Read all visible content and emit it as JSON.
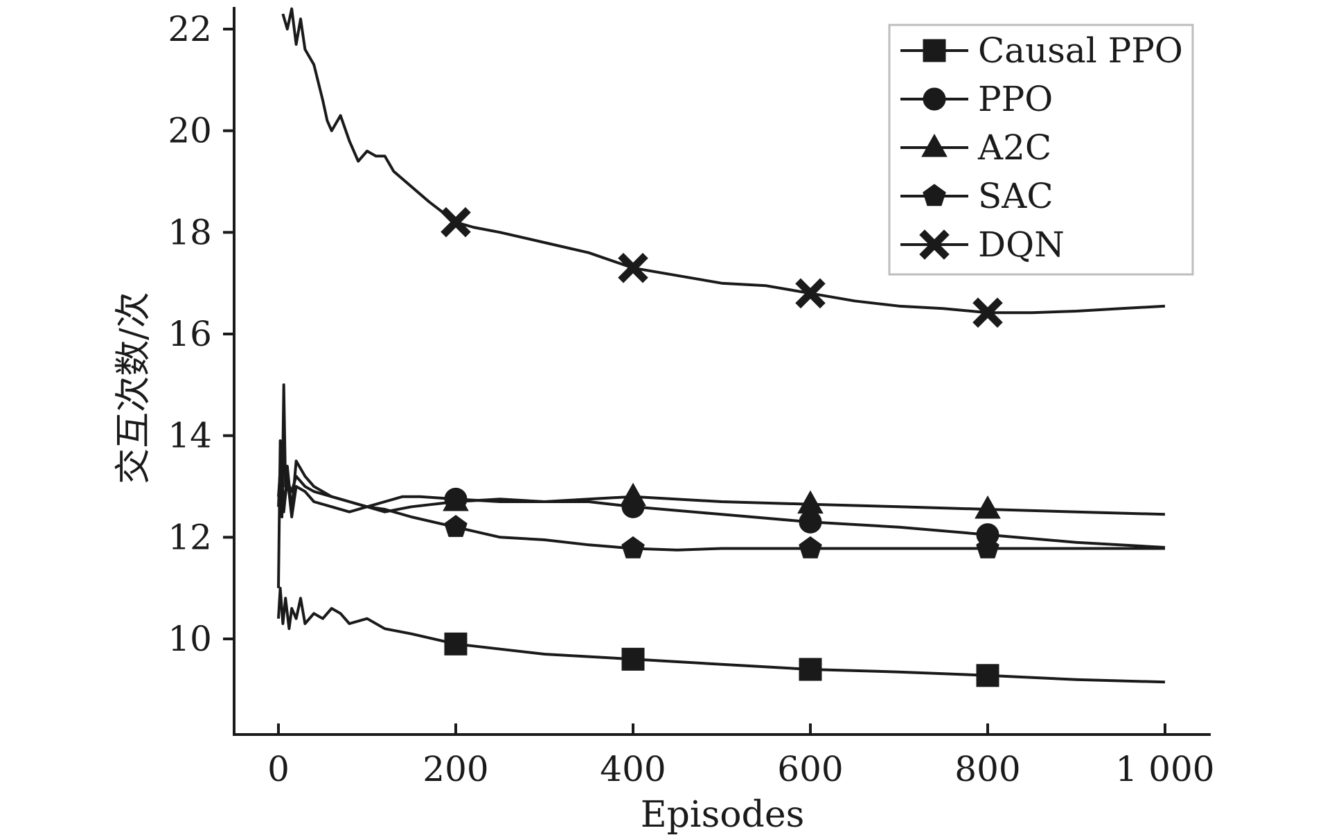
{
  "chart_data": {
    "type": "line",
    "title": "",
    "xlabel": "Episodes",
    "ylabel": "交互次数/次",
    "xlim": [
      -60,
      1060
    ],
    "ylim": [
      8.2,
      22.4
    ],
    "xticks": [
      0,
      200,
      400,
      600,
      800,
      1000
    ],
    "xtick_labels": [
      "0",
      "200",
      "400",
      "600",
      "800",
      "1 000"
    ],
    "yticks": [
      10,
      12,
      14,
      16,
      18,
      20,
      22
    ],
    "ytick_labels": [
      "10",
      "12",
      "14",
      "16",
      "18",
      "20",
      "22"
    ],
    "grid": false,
    "legend_position": "top-right",
    "series": [
      {
        "name": "Causal PPO",
        "marker": "square",
        "x": [
          0,
          2,
          5,
          8,
          12,
          15,
          20,
          25,
          30,
          40,
          50,
          60,
          70,
          80,
          100,
          120,
          150,
          200,
          250,
          300,
          400,
          500,
          600,
          700,
          800,
          900,
          1000
        ],
        "y": [
          10.4,
          11.0,
          10.3,
          10.8,
          10.2,
          10.6,
          10.4,
          10.8,
          10.3,
          10.5,
          10.4,
          10.6,
          10.5,
          10.3,
          10.4,
          10.2,
          10.1,
          9.9,
          9.8,
          9.7,
          9.6,
          9.5,
          9.4,
          9.35,
          9.28,
          9.2,
          9.15
        ]
      },
      {
        "name": "PPO",
        "marker": "circle",
        "x": [
          0,
          3,
          6,
          10,
          15,
          20,
          30,
          40,
          60,
          80,
          100,
          120,
          140,
          160,
          200,
          250,
          300,
          350,
          400,
          500,
          600,
          700,
          800,
          900,
          1000
        ],
        "y": [
          12.6,
          13.8,
          12.5,
          13.2,
          12.4,
          13.0,
          12.9,
          12.7,
          12.6,
          12.5,
          12.6,
          12.7,
          12.8,
          12.8,
          12.75,
          12.7,
          12.7,
          12.7,
          12.6,
          12.45,
          12.3,
          12.2,
          12.05,
          11.9,
          11.8
        ]
      },
      {
        "name": "A2C",
        "marker": "triangle",
        "x": [
          0,
          3,
          6,
          10,
          15,
          20,
          30,
          40,
          60,
          80,
          100,
          120,
          150,
          200,
          250,
          300,
          350,
          400,
          500,
          600,
          700,
          800,
          900,
          1000
        ],
        "y": [
          12.8,
          13.5,
          12.6,
          13.1,
          12.9,
          13.2,
          13.0,
          12.9,
          12.8,
          12.7,
          12.6,
          12.5,
          12.6,
          12.7,
          12.75,
          12.7,
          12.75,
          12.8,
          12.7,
          12.65,
          12.6,
          12.55,
          12.5,
          12.45
        ]
      },
      {
        "name": "SAC",
        "marker": "pentagon",
        "x": [
          0,
          2,
          4,
          6,
          8,
          10,
          15,
          20,
          30,
          40,
          50,
          60,
          80,
          100,
          120,
          150,
          200,
          250,
          300,
          350,
          400,
          450,
          500,
          600,
          700,
          800,
          900,
          1000
        ],
        "y": [
          11.0,
          13.9,
          12.4,
          15.0,
          13.0,
          13.4,
          12.5,
          13.5,
          13.2,
          13.0,
          12.9,
          12.8,
          12.7,
          12.6,
          12.55,
          12.4,
          12.2,
          12.0,
          11.95,
          11.85,
          11.78,
          11.75,
          11.78,
          11.78,
          11.78,
          11.78,
          11.78,
          11.78
        ]
      },
      {
        "name": "DQN",
        "marker": "x",
        "x": [
          5,
          10,
          15,
          20,
          25,
          30,
          40,
          50,
          55,
          60,
          70,
          80,
          90,
          100,
          110,
          120,
          130,
          150,
          170,
          200,
          220,
          250,
          300,
          350,
          400,
          450,
          500,
          550,
          600,
          650,
          700,
          750,
          800,
          850,
          900,
          950,
          1000
        ],
        "y": [
          22.3,
          22.0,
          22.4,
          21.7,
          22.2,
          21.6,
          21.3,
          20.6,
          20.2,
          20.0,
          20.3,
          19.8,
          19.4,
          19.6,
          19.5,
          19.5,
          19.2,
          18.9,
          18.6,
          18.2,
          18.1,
          18.0,
          17.8,
          17.6,
          17.3,
          17.15,
          17.0,
          16.95,
          16.8,
          16.65,
          16.55,
          16.5,
          16.42,
          16.42,
          16.45,
          16.5,
          16.55
        ]
      }
    ],
    "markers_at_x": [
      200,
      400,
      600,
      800
    ]
  }
}
